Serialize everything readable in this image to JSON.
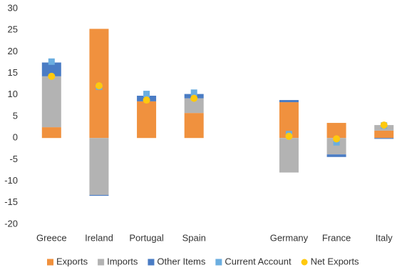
{
  "chart_data": {
    "type": "bar",
    "categories": [
      "Greece",
      "Ireland",
      "Portugal",
      "Spain",
      null,
      "Germany",
      "France",
      "Italy"
    ],
    "series": [
      {
        "name": "Exports",
        "color": "#f0913e",
        "kind": "bar",
        "values": [
          2.5,
          25.3,
          8.5,
          5.8,
          null,
          8.3,
          3.5,
          1.7
        ]
      },
      {
        "name": "Imports",
        "color": "#b3b3b3",
        "kind": "bar",
        "values": [
          11.8,
          -13.2,
          0,
          3.4,
          null,
          -8.0,
          -3.8,
          1.3
        ]
      },
      {
        "name": "Other Items",
        "color": "#4a7cc4",
        "kind": "bar",
        "values": [
          3.2,
          -0.2,
          1.3,
          1.0,
          null,
          0.5,
          -0.6,
          -0.2
        ]
      },
      {
        "name": "Current Account",
        "color": "#6baee0",
        "kind": "square",
        "values": [
          17.7,
          11.9,
          10.2,
          10.5,
          null,
          0.9,
          -1.0,
          2.9
        ]
      },
      {
        "name": "Net Exports",
        "color": "#ffc90e",
        "kind": "circle",
        "values": [
          14.3,
          12.1,
          8.8,
          9.2,
          null,
          0.4,
          -0.2,
          3.0
        ]
      }
    ],
    "ylim": [
      -20,
      30
    ],
    "yticks": [
      -20,
      -15,
      -10,
      -5,
      0,
      5,
      10,
      15,
      20,
      25,
      30
    ],
    "grid": false
  }
}
